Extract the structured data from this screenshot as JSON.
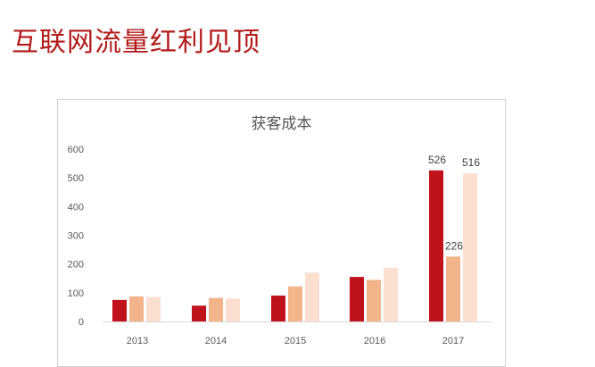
{
  "page": {
    "title": "互联网流量红利见顶"
  },
  "colors": {
    "title": "#b21a1a",
    "series": [
      "#c0121a",
      "#f2b48a",
      "#fbe0d2"
    ]
  },
  "chart_data": {
    "type": "bar",
    "title": "获客成本",
    "categories": [
      "2013",
      "2014",
      "2015",
      "2016",
      "2017"
    ],
    "series": [
      {
        "values": [
          75,
          55,
          90,
          155,
          526
        ],
        "labels": [
          null,
          null,
          null,
          null,
          "526"
        ]
      },
      {
        "values": [
          87,
          82,
          122,
          145,
          226
        ],
        "labels": [
          null,
          null,
          null,
          null,
          "226"
        ]
      },
      {
        "values": [
          85,
          80,
          170,
          187,
          516
        ],
        "labels": [
          null,
          null,
          null,
          null,
          "516"
        ]
      }
    ],
    "ylim": [
      0,
      600
    ],
    "yticks": [
      0,
      100,
      200,
      300,
      400,
      500,
      600
    ],
    "grid": false,
    "legend": "none"
  }
}
